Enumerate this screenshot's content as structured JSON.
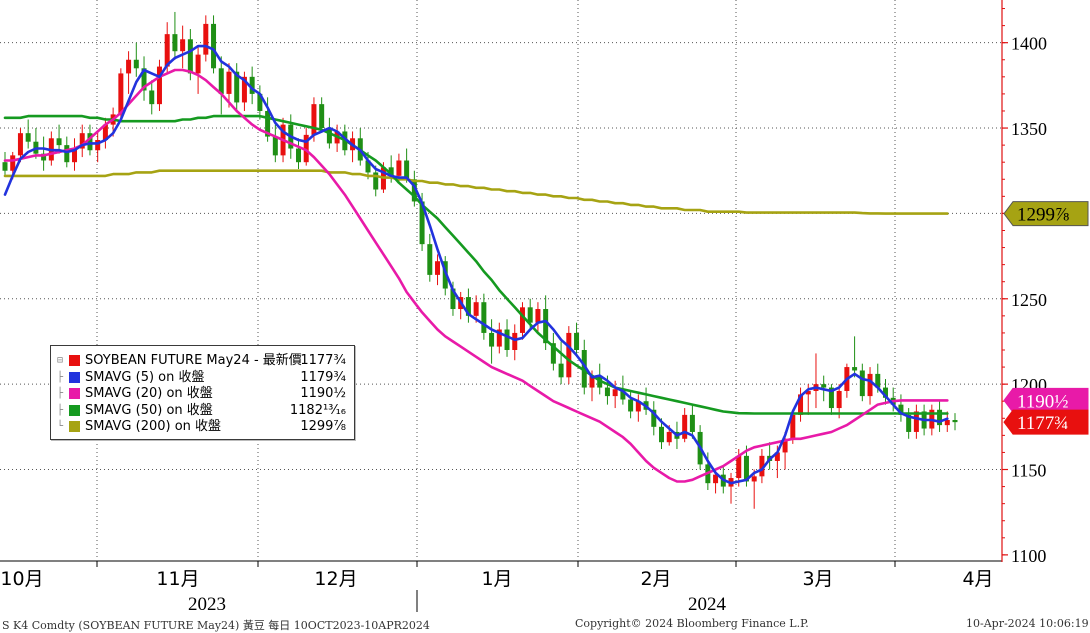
{
  "chart_data": {
    "type": "candlestick",
    "y_axis_ticks": [
      "1100",
      "1150",
      "1200",
      "1250",
      "1300",
      "1350",
      "1400"
    ],
    "ylim": [
      1097,
      1425
    ],
    "x_month_labels": [
      "10月",
      "11月",
      "12月",
      "1月",
      "2月",
      "3月",
      "4月"
    ],
    "x_year_labels": [
      "2023",
      "2024"
    ],
    "colors": {
      "up": "#e8100f",
      "down": "#1f8f15",
      "sma5": "#2233dd",
      "sma20": "#e81aa8",
      "sma50": "#159a20",
      "sma200": "#a6a313",
      "axis": "#e01010"
    },
    "price_tags": [
      {
        "series": "sma200",
        "label": "1299⅞",
        "color": "#a6a313",
        "text_color": "#000000",
        "value": 1299.875
      },
      {
        "series": "sma20",
        "label": "1190½",
        "color": "#e81aa8",
        "text_color": "#ffffff",
        "value": 1190.5
      },
      {
        "series": "last",
        "label": "1177¾",
        "color": "#e8100f",
        "text_color": "#ffffff",
        "value": 1177.75
      }
    ],
    "legend": [
      {
        "name": "SOYBEAN FUTURE May24 - 最新價",
        "value": "1177¾",
        "color": "#e8100f"
      },
      {
        "name": "SMAVG (5)  on 收盤",
        "value": "1179¾",
        "color": "#2233dd"
      },
      {
        "name": "SMAVG (20)  on 收盤",
        "value": "1190½",
        "color": "#e81aa8"
      },
      {
        "name": "SMAVG (50)  on 收盤",
        "value": "1182¹³⁄₁₆",
        "color": "#159a20"
      },
      {
        "name": "SMAVG (200)  on 收盤",
        "value": "1299⅞",
        "color": "#a6a313"
      }
    ],
    "candles": [
      [
        1330,
        1336,
        1322,
        1325
      ],
      [
        1325,
        1336,
        1320,
        1334
      ],
      [
        1334,
        1350,
        1330,
        1347
      ],
      [
        1347,
        1355,
        1338,
        1342
      ],
      [
        1342,
        1350,
        1332,
        1335
      ],
      [
        1335,
        1345,
        1325,
        1331
      ],
      [
        1331,
        1348,
        1328,
        1344
      ],
      [
        1344,
        1352,
        1335,
        1340
      ],
      [
        1340,
        1345,
        1327,
        1330
      ],
      [
        1330,
        1344,
        1325,
        1338
      ],
      [
        1338,
        1352,
        1333,
        1347
      ],
      [
        1347,
        1352,
        1334,
        1337
      ],
      [
        1337,
        1348,
        1330,
        1343
      ],
      [
        1343,
        1356,
        1338,
        1352
      ],
      [
        1352,
        1362,
        1345,
        1358
      ],
      [
        1358,
        1385,
        1354,
        1382
      ],
      [
        1382,
        1395,
        1370,
        1390
      ],
      [
        1390,
        1400,
        1380,
        1385
      ],
      [
        1385,
        1392,
        1366,
        1372
      ],
      [
        1372,
        1378,
        1358,
        1364
      ],
      [
        1364,
        1390,
        1360,
        1386
      ],
      [
        1386,
        1412,
        1382,
        1405
      ],
      [
        1405,
        1418,
        1390,
        1395
      ],
      [
        1395,
        1410,
        1385,
        1402
      ],
      [
        1402,
        1408,
        1378,
        1382
      ],
      [
        1382,
        1398,
        1370,
        1393
      ],
      [
        1393,
        1416,
        1389,
        1411
      ],
      [
        1411,
        1416,
        1382,
        1385
      ],
      [
        1385,
        1392,
        1358,
        1370
      ],
      [
        1370,
        1388,
        1362,
        1383
      ],
      [
        1383,
        1388,
        1360,
        1365
      ],
      [
        1365,
        1383,
        1360,
        1380
      ],
      [
        1380,
        1386,
        1364,
        1370
      ],
      [
        1370,
        1375,
        1355,
        1360
      ],
      [
        1360,
        1368,
        1342,
        1345
      ],
      [
        1345,
        1352,
        1330,
        1334
      ],
      [
        1334,
        1356,
        1330,
        1352
      ],
      [
        1352,
        1358,
        1332,
        1338
      ],
      [
        1338,
        1344,
        1326,
        1330
      ],
      [
        1330,
        1350,
        1328,
        1346
      ],
      [
        1346,
        1368,
        1342,
        1364
      ],
      [
        1364,
        1368,
        1348,
        1350
      ],
      [
        1350,
        1356,
        1338,
        1341
      ],
      [
        1341,
        1352,
        1336,
        1348
      ],
      [
        1348,
        1352,
        1334,
        1337
      ],
      [
        1337,
        1348,
        1330,
        1344
      ],
      [
        1344,
        1350,
        1328,
        1331
      ],
      [
        1331,
        1336,
        1320,
        1324
      ],
      [
        1324,
        1328,
        1310,
        1314
      ],
      [
        1314,
        1330,
        1312,
        1327
      ],
      [
        1327,
        1334,
        1318,
        1322
      ],
      [
        1322,
        1335,
        1318,
        1331
      ],
      [
        1331,
        1338,
        1318,
        1320
      ],
      [
        1320,
        1325,
        1304,
        1307
      ],
      [
        1307,
        1312,
        1278,
        1282
      ],
      [
        1282,
        1288,
        1260,
        1264
      ],
      [
        1264,
        1276,
        1258,
        1272
      ],
      [
        1272,
        1275,
        1252,
        1256
      ],
      [
        1256,
        1260,
        1240,
        1244
      ],
      [
        1244,
        1254,
        1238,
        1251
      ],
      [
        1251,
        1256,
        1236,
        1240
      ],
      [
        1240,
        1252,
        1236,
        1248
      ],
      [
        1248,
        1253,
        1226,
        1230
      ],
      [
        1230,
        1238,
        1212,
        1222
      ],
      [
        1222,
        1236,
        1218,
        1232
      ],
      [
        1232,
        1238,
        1216,
        1220
      ],
      [
        1220,
        1235,
        1214,
        1230
      ],
      [
        1230,
        1248,
        1226,
        1245
      ],
      [
        1245,
        1250,
        1232,
        1236
      ],
      [
        1236,
        1248,
        1230,
        1244
      ],
      [
        1244,
        1252,
        1220,
        1224
      ],
      [
        1224,
        1230,
        1208,
        1212
      ],
      [
        1212,
        1225,
        1200,
        1204
      ],
      [
        1204,
        1234,
        1200,
        1230
      ],
      [
        1230,
        1236,
        1216,
        1220
      ],
      [
        1220,
        1226,
        1194,
        1198
      ],
      [
        1198,
        1208,
        1190,
        1205
      ],
      [
        1205,
        1212,
        1194,
        1198
      ],
      [
        1198,
        1205,
        1188,
        1193
      ],
      [
        1193,
        1202,
        1186,
        1197
      ],
      [
        1197,
        1205,
        1188,
        1191
      ],
      [
        1191,
        1196,
        1180,
        1184
      ],
      [
        1184,
        1194,
        1178,
        1190
      ],
      [
        1190,
        1198,
        1182,
        1185
      ],
      [
        1185,
        1190,
        1170,
        1175
      ],
      [
        1175,
        1180,
        1162,
        1166
      ],
      [
        1166,
        1176,
        1164,
        1172
      ],
      [
        1172,
        1178,
        1162,
        1168
      ],
      [
        1168,
        1186,
        1166,
        1182
      ],
      [
        1182,
        1188,
        1168,
        1172
      ],
      [
        1172,
        1176,
        1150,
        1153
      ],
      [
        1153,
        1160,
        1138,
        1142
      ],
      [
        1142,
        1150,
        1136,
        1147
      ],
      [
        1147,
        1152,
        1136,
        1140
      ],
      [
        1140,
        1148,
        1130,
        1145
      ],
      [
        1145,
        1162,
        1140,
        1158
      ],
      [
        1158,
        1164,
        1140,
        1143
      ],
      [
        1143,
        1150,
        1127,
        1146
      ],
      [
        1146,
        1162,
        1142,
        1158
      ],
      [
        1158,
        1166,
        1150,
        1155
      ],
      [
        1155,
        1164,
        1145,
        1160
      ],
      [
        1160,
        1172,
        1150,
        1168
      ],
      [
        1168,
        1185,
        1165,
        1182
      ],
      [
        1182,
        1198,
        1178,
        1194
      ],
      [
        1194,
        1200,
        1182,
        1196
      ],
      [
        1196,
        1218,
        1186,
        1200
      ],
      [
        1200,
        1205,
        1190,
        1198
      ],
      [
        1198,
        1200,
        1182,
        1186
      ],
      [
        1186,
        1200,
        1180,
        1196
      ],
      [
        1196,
        1212,
        1192,
        1210
      ],
      [
        1210,
        1228,
        1204,
        1208
      ],
      [
        1208,
        1212,
        1190,
        1193
      ],
      [
        1193,
        1210,
        1188,
        1206
      ],
      [
        1206,
        1212,
        1195,
        1198
      ],
      [
        1198,
        1203,
        1188,
        1192
      ],
      [
        1192,
        1198,
        1184,
        1188
      ],
      [
        1188,
        1194,
        1178,
        1182
      ],
      [
        1182,
        1186,
        1168,
        1172
      ],
      [
        1172,
        1188,
        1168,
        1184
      ],
      [
        1184,
        1188,
        1170,
        1174
      ],
      [
        1174,
        1188,
        1170,
        1185
      ],
      [
        1185,
        1190,
        1172,
        1176
      ],
      [
        1176,
        1184,
        1172,
        1179
      ],
      [
        1179,
        1183,
        1173,
        1177.75
      ]
    ],
    "sma5": [
      1311,
      1322,
      1332,
      1336,
      1338,
      1338,
      1337,
      1337,
      1336,
      1337,
      1340,
      1341,
      1341,
      1343,
      1347,
      1355,
      1366,
      1377,
      1384,
      1382,
      1380,
      1387,
      1391,
      1393,
      1395,
      1398,
      1398,
      1396,
      1389,
      1386,
      1381,
      1378,
      1373,
      1370,
      1362,
      1353,
      1348,
      1345,
      1343,
      1342,
      1346,
      1348,
      1350,
      1348,
      1344,
      1340,
      1337,
      1331,
      1326,
      1324,
      1322,
      1321,
      1321,
      1316,
      1306,
      1293,
      1279,
      1266,
      1255,
      1248,
      1241,
      1238,
      1235,
      1232,
      1230,
      1228,
      1226,
      1227,
      1232,
      1236,
      1237,
      1232,
      1226,
      1222,
      1217,
      1211,
      1204,
      1205,
      1202,
      1198,
      1196,
      1192,
      1190,
      1187,
      1183,
      1178,
      1174,
      1170,
      1172,
      1170,
      1163,
      1155,
      1148,
      1144,
      1142,
      1143,
      1144,
      1148,
      1150,
      1156,
      1160,
      1170,
      1184,
      1193,
      1197,
      1198,
      1197,
      1196,
      1198,
      1203,
      1206,
      1203,
      1202,
      1198,
      1193,
      1188,
      1183,
      1181,
      1180,
      1179,
      1179,
      1178,
      1179.75
    ],
    "sma20": [
      1331,
      1331,
      1332,
      1333,
      1334,
      1334,
      1335,
      1336,
      1337,
      1338,
      1340,
      1344,
      1348,
      1352,
      1355,
      1359,
      1364,
      1369,
      1374,
      1377,
      1380,
      1382,
      1384,
      1384,
      1383,
      1381,
      1378,
      1374,
      1370,
      1365,
      1360,
      1356,
      1352,
      1349,
      1347,
      1345,
      1343,
      1341,
      1339,
      1337,
      1333,
      1328,
      1323,
      1317,
      1311,
      1304,
      1297,
      1290,
      1283,
      1276,
      1269,
      1262,
      1254,
      1248,
      1242,
      1237,
      1232,
      1228,
      1225,
      1222,
      1219,
      1216,
      1213,
      1210,
      1208,
      1206,
      1204,
      1202,
      1199,
      1196,
      1193,
      1190,
      1188,
      1186,
      1184,
      1182,
      1180,
      1178,
      1175,
      1172,
      1169,
      1165,
      1160,
      1155,
      1151,
      1148,
      1145,
      1143,
      1143,
      1144,
      1146,
      1148,
      1150,
      1152,
      1155,
      1158,
      1161,
      1163,
      1164,
      1165,
      1166,
      1167,
      1168,
      1168,
      1169,
      1170,
      1171,
      1172,
      1174,
      1176,
      1179,
      1182,
      1185,
      1188,
      1189,
      1190,
      1190.5,
      1190.5,
      1190.5,
      1190.5,
      1190.5,
      1190.5,
      1190.5
    ],
    "sma50": [
      1356,
      1356,
      1356,
      1357,
      1357,
      1357,
      1357,
      1357,
      1357,
      1357,
      1357,
      1356,
      1356,
      1355,
      1355,
      1354,
      1354,
      1354,
      1354,
      1354,
      1354,
      1354,
      1354,
      1355,
      1355,
      1356,
      1356,
      1357,
      1357,
      1357,
      1357,
      1357,
      1357,
      1357,
      1356,
      1355,
      1354,
      1353,
      1352,
      1351,
      1350,
      1349,
      1347,
      1345,
      1343,
      1340,
      1337,
      1334,
      1331,
      1327,
      1323,
      1318,
      1314,
      1310,
      1305,
      1301,
      1297,
      1292,
      1287,
      1282,
      1277,
      1272,
      1266,
      1261,
      1255,
      1250,
      1245,
      1240,
      1235,
      1230,
      1226,
      1222,
      1218,
      1214,
      1211,
      1208,
      1205,
      1202,
      1200,
      1198,
      1197,
      1196,
      1195,
      1194,
      1193,
      1192,
      1191,
      1190,
      1189,
      1188,
      1187,
      1186,
      1185,
      1184,
      1183.5,
      1183,
      1182.9,
      1182.8125,
      1182.8125,
      1182.8125,
      1182.8125,
      1182.8125,
      1182.8125,
      1182.8125,
      1182.8125,
      1182.8125,
      1182.8125,
      1182.8125,
      1182.8125,
      1182.8125,
      1182.8125,
      1182.8125,
      1182.8125,
      1182.8125,
      1182.8125,
      1182.8125,
      1182.8125,
      1182.8125,
      1182.8125,
      1182.8125,
      1182.8125,
      1182.8125,
      1182.8125
    ],
    "sma200": [
      1322,
      1322,
      1322,
      1322,
      1322,
      1322,
      1322,
      1322,
      1322,
      1322,
      1322,
      1322,
      1322,
      1322,
      1323,
      1323,
      1323,
      1324,
      1324,
      1324,
      1325,
      1325,
      1325,
      1325,
      1325,
      1325,
      1325,
      1325,
      1325,
      1325,
      1325,
      1325,
      1325,
      1325,
      1325,
      1325,
      1325,
      1325,
      1325,
      1325,
      1325,
      1325,
      1324,
      1324,
      1324,
      1323,
      1323,
      1322,
      1322,
      1321,
      1321,
      1320,
      1320,
      1319,
      1319,
      1318,
      1318,
      1317,
      1317,
      1316,
      1316,
      1315,
      1315,
      1314,
      1314,
      1313,
      1313,
      1312,
      1312,
      1311,
      1311,
      1310,
      1310,
      1309,
      1309,
      1308,
      1308,
      1307,
      1307,
      1306,
      1306,
      1305,
      1305,
      1304,
      1304,
      1303,
      1303,
      1303,
      1302,
      1302,
      1302,
      1301,
      1301,
      1301,
      1301,
      1301,
      1300.5,
      1300.5,
      1300.5,
      1300.5,
      1300.5,
      1300.5,
      1300.5,
      1300.5,
      1300.5,
      1300.5,
      1300.5,
      1300.5,
      1300.5,
      1300.5,
      1300.5,
      1300.2,
      1300,
      1300,
      1299.875,
      1299.875,
      1299.875,
      1299.875,
      1299.875,
      1299.875,
      1299.875,
      1299.875,
      1299.875
    ]
  },
  "footer": {
    "left": "S K4 Comdty (SOYBEAN FUTURE    May24) 黃豆  每日 10OCT2023-10APR2024",
    "center": "Copyright© 2024 Bloomberg Finance L.P.",
    "right": "10-Apr-2024 10:06:19"
  }
}
